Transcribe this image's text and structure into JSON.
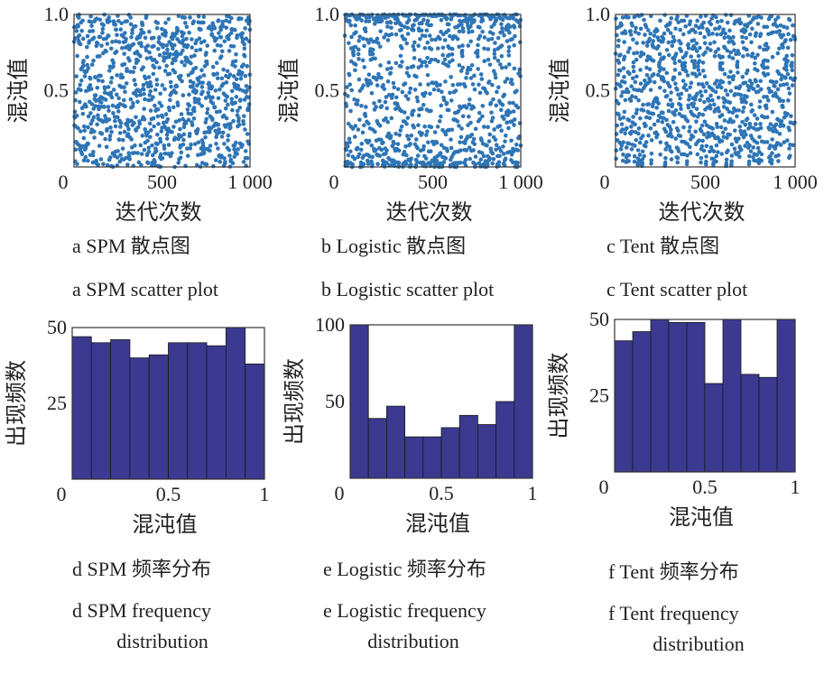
{
  "chart_data": [
    {
      "type": "scatter",
      "xlabel": "迭代次数",
      "ylabel": "混沌值",
      "xlim": [
        0,
        1000
      ],
      "ylim": [
        0,
        1
      ],
      "xticks": [
        "0",
        "500",
        "1 000"
      ],
      "yticks": [
        "1.0",
        "0.5"
      ],
      "series_color": "#2E75B6",
      "map": "spm",
      "seed": 11,
      "points": 1000,
      "caption_cn": "a SPM 散点图",
      "caption_en": "a SPM scatter plot"
    },
    {
      "type": "scatter",
      "xlabel": "迭代次数",
      "ylabel": "混沌值",
      "xlim": [
        0,
        1000
      ],
      "ylim": [
        0,
        1
      ],
      "xticks": [
        "0",
        "500",
        "1 000"
      ],
      "yticks": [
        "1.0",
        "0.5"
      ],
      "series_color": "#2E75B6",
      "map": "logistic",
      "seed": 0.3137,
      "points": 1000,
      "caption_cn": "b Logistic 散点图",
      "caption_en": "b Logistic scatter plot"
    },
    {
      "type": "scatter",
      "xlabel": "迭代次数",
      "ylabel": "混沌值",
      "xlim": [
        0,
        1000
      ],
      "ylim": [
        0,
        1
      ],
      "xticks": [
        "0",
        "500",
        "1 000"
      ],
      "yticks": [
        "1.0",
        "0.5"
      ],
      "series_color": "#2E75B6",
      "map": "tent",
      "seed": 0.3719,
      "points": 1000,
      "caption_cn": "c Tent 散点图",
      "caption_en": "c Tent scatter plot"
    },
    {
      "type": "bar",
      "xlabel": "混沌值",
      "ylabel": "出现频数",
      "xlim": [
        0,
        1
      ],
      "ylim": [
        0,
        50
      ],
      "xticks": [
        "0",
        "0.5",
        "1"
      ],
      "yticks": [
        "50",
        "25"
      ],
      "series_color": "#3B3990",
      "bins": 10,
      "values": [
        47,
        45,
        46,
        40,
        41,
        45,
        45,
        44,
        50,
        38
      ],
      "caption_cn": "d SPM 频率分布",
      "caption_en": [
        "d SPM frequency",
        "distribution"
      ]
    },
    {
      "type": "bar",
      "xlabel": "混沌值",
      "ylabel": "出现频数",
      "xlim": [
        0,
        1
      ],
      "ylim": [
        0,
        100
      ],
      "xticks": [
        "0",
        "0.5",
        "1"
      ],
      "yticks": [
        "100",
        "50"
      ],
      "series_color": "#3B3990",
      "bins": 10,
      "values": [
        100,
        39,
        47,
        27,
        27,
        33,
        41,
        35,
        50,
        100
      ],
      "caption_cn": "e Logistic 频率分布",
      "caption_en": [
        "e Logistic frequency",
        "distribution"
      ]
    },
    {
      "type": "bar",
      "xlabel": "混沌值",
      "ylabel": "出现频数",
      "xlim": [
        0,
        1
      ],
      "ylim": [
        0,
        50
      ],
      "xticks": [
        "0",
        "0.5",
        "1"
      ],
      "yticks": [
        "50",
        "25"
      ],
      "series_color": "#3B3990",
      "bins": 10,
      "values": [
        43,
        46,
        50,
        49,
        49,
        29,
        50,
        32,
        31,
        50
      ],
      "caption_cn": "f Tent 频率分布",
      "caption_en": [
        "f Tent frequency",
        "distribution"
      ]
    }
  ]
}
